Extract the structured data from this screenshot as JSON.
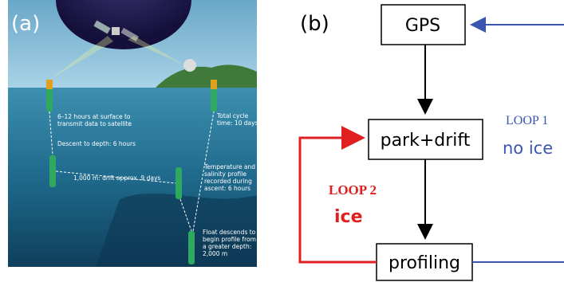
{
  "panel_a": {
    "label": "(a)",
    "annotations": [
      {
        "lines": [
          "6–12 hours at surface to",
          "transmit data to satellite"
        ]
      },
      {
        "lines": [
          "Descent to depth: 6 hours"
        ]
      },
      {
        "lines": [
          "Total cycle",
          "time: 10 days"
        ]
      },
      {
        "lines": [
          "1,000 m: drift approx. 9 days"
        ]
      },
      {
        "lines": [
          "Temperature and",
          "salinity profile",
          "recorded during",
          "ascent: 6 hours"
        ]
      },
      {
        "lines": [
          "Float descends to",
          "begin profile from",
          "a greater depth:",
          "2,000 m"
        ]
      }
    ]
  },
  "panel_b": {
    "label": "(b)",
    "nodes": [
      {
        "label": "GPS"
      },
      {
        "label": "park+drift"
      },
      {
        "label": "profiling"
      }
    ],
    "loops": [
      {
        "name": "LOOP 1",
        "condition": "no ice"
      },
      {
        "name": "LOOP 2",
        "condition": "ice"
      }
    ]
  }
}
